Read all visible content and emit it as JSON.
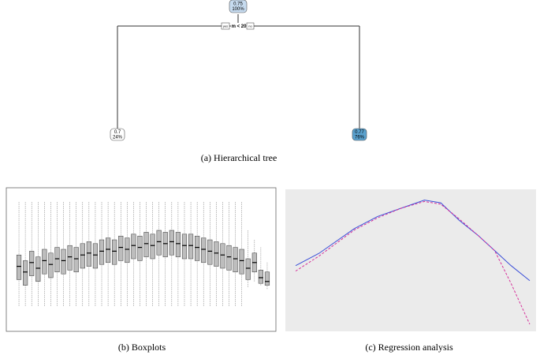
{
  "tree": {
    "root": {
      "value": "0.75",
      "share": "100%"
    },
    "split": {
      "condition": "m < 20",
      "yes": "yes",
      "no": "no"
    },
    "leaves": [
      {
        "value": "0.7",
        "share": "24%"
      },
      {
        "value": "0.77",
        "share": "76%"
      }
    ]
  },
  "captions": {
    "a": "(a) Hierarchical tree",
    "b": "(b) Boxplots",
    "c": "(c) Regression analysis"
  },
  "chart_data": [
    {
      "type": "box",
      "color": "#bdbdbd",
      "categories": [
        null,
        null,
        null,
        null,
        null,
        null,
        null,
        null,
        null,
        null,
        null,
        null,
        null,
        null,
        null,
        null,
        null,
        null,
        null,
        null,
        null,
        null,
        null,
        null,
        null,
        null,
        null,
        null,
        null,
        null,
        null,
        null,
        null,
        null,
        null,
        null,
        null,
        null,
        null,
        null
      ],
      "median": [
        3.6,
        3.3,
        3.8,
        3.5,
        3.9,
        3.7,
        4.0,
        3.9,
        4.1,
        4.0,
        4.2,
        4.3,
        4.2,
        4.4,
        4.5,
        4.4,
        4.6,
        4.5,
        4.7,
        4.6,
        4.8,
        4.7,
        4.9,
        4.8,
        4.9,
        4.8,
        4.7,
        4.7,
        4.6,
        4.5,
        4.4,
        4.3,
        4.2,
        4.1,
        4.0,
        3.9,
        3.5,
        3.8,
        3.0,
        2.8
      ],
      "q1": [
        2.9,
        2.6,
        3.1,
        2.8,
        3.2,
        3.0,
        3.3,
        3.2,
        3.4,
        3.3,
        3.5,
        3.6,
        3.5,
        3.7,
        3.8,
        3.7,
        3.9,
        3.8,
        4.0,
        3.9,
        4.1,
        4.0,
        4.2,
        4.1,
        4.2,
        4.1,
        4.0,
        4.0,
        3.9,
        3.8,
        3.7,
        3.6,
        3.5,
        3.4,
        3.3,
        3.2,
        2.9,
        3.3,
        2.7,
        2.6
      ],
      "q3": [
        4.2,
        3.9,
        4.4,
        4.1,
        4.5,
        4.3,
        4.6,
        4.5,
        4.7,
        4.6,
        4.8,
        4.9,
        4.8,
        5.0,
        5.1,
        5.0,
        5.2,
        5.1,
        5.3,
        5.2,
        5.4,
        5.3,
        5.5,
        5.4,
        5.5,
        5.4,
        5.3,
        5.3,
        5.2,
        5.1,
        5.0,
        4.9,
        4.8,
        4.7,
        4.6,
        4.5,
        4.0,
        4.3,
        3.4,
        3.3
      ],
      "whisker_low": [
        1.5,
        1.5,
        1.5,
        1.5,
        1.5,
        1.5,
        1.5,
        1.5,
        1.5,
        1.5,
        1.5,
        1.5,
        1.5,
        1.5,
        1.5,
        1.5,
        1.5,
        1.5,
        1.5,
        1.5,
        1.5,
        1.5,
        1.5,
        1.5,
        1.5,
        1.5,
        1.5,
        1.5,
        1.5,
        1.5,
        1.5,
        1.5,
        1.5,
        1.5,
        1.5,
        1.5,
        2.5,
        2.8,
        2.6,
        2.4
      ],
      "whisker_high": [
        7,
        7,
        7,
        7,
        7,
        7,
        7,
        7,
        7,
        7,
        7,
        7,
        7,
        7,
        7,
        7,
        7,
        7,
        7,
        7,
        7,
        7,
        7,
        7,
        7,
        7,
        7,
        7,
        7,
        7,
        7,
        7,
        7,
        7,
        7,
        7,
        5.5,
        5.0,
        4.6,
        3.8
      ],
      "ylim": [
        0.5,
        7.5
      ]
    },
    {
      "type": "line",
      "background": "#ebebeb",
      "x": [
        0,
        10,
        25,
        35,
        45,
        55,
        62,
        70,
        78,
        85,
        92,
        100
      ],
      "series": [
        {
          "color": "#3b4fd8",
          "dashed": false,
          "values": [
            4.7,
            5.6,
            7.4,
            8.3,
            8.9,
            9.5,
            9.3,
            8.0,
            6.9,
            5.8,
            4.7,
            3.6
          ]
        },
        {
          "color": "#d6309a",
          "dashed": true,
          "values": [
            4.3,
            5.4,
            7.3,
            8.2,
            8.9,
            9.4,
            9.2,
            8.1,
            6.9,
            5.8,
            3.4,
            0.4
          ]
        }
      ],
      "xlim": [
        0,
        100
      ],
      "ylim": [
        0,
        10
      ]
    }
  ]
}
